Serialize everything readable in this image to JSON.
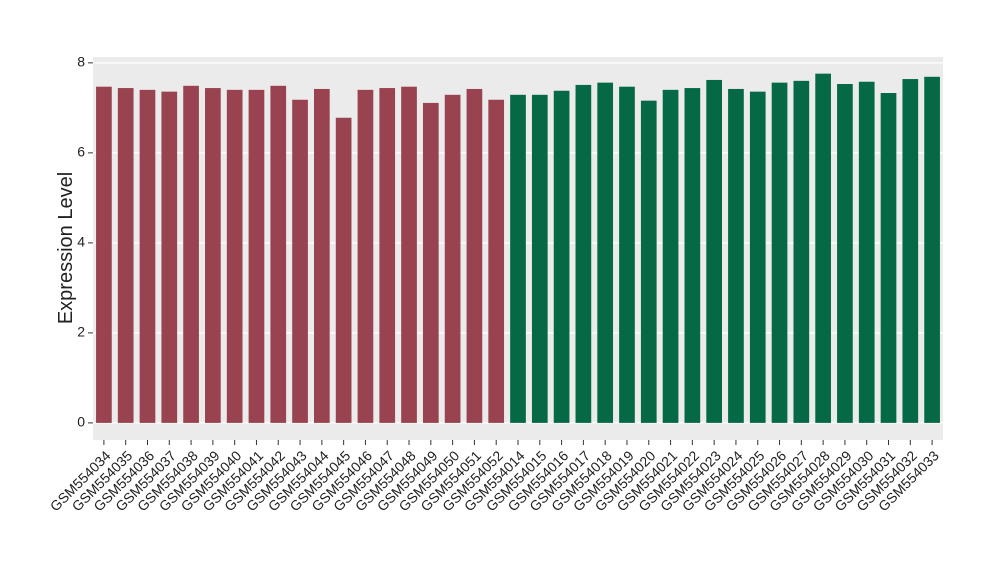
{
  "chart_data": {
    "type": "bar",
    "y_label": "Expression Level",
    "categories": [
      "GSM554034",
      "GSM554035",
      "GSM554036",
      "GSM554037",
      "GSM554038",
      "GSM554039",
      "GSM554040",
      "GSM554041",
      "GSM554042",
      "GSM554043",
      "GSM554044",
      "GSM554045",
      "GSM554046",
      "GSM554047",
      "GSM554048",
      "GSM554049",
      "GSM554050",
      "GSM554051",
      "GSM554052",
      "GSM554014",
      "GSM554015",
      "GSM554016",
      "GSM554017",
      "GSM554018",
      "GSM554019",
      "GSM554020",
      "GSM554021",
      "GSM554022",
      "GSM554023",
      "GSM554024",
      "GSM554025",
      "GSM554026",
      "GSM554027",
      "GSM554028",
      "GSM554029",
      "GSM554030",
      "GSM554031",
      "GSM554032",
      "GSM554033"
    ],
    "values": [
      7.47,
      7.44,
      7.4,
      7.36,
      7.49,
      7.44,
      7.4,
      7.4,
      7.49,
      7.18,
      7.42,
      6.78,
      7.4,
      7.44,
      7.47,
      7.11,
      7.29,
      7.42,
      7.18,
      7.29,
      7.29,
      7.38,
      7.51,
      7.56,
      7.47,
      7.16,
      7.4,
      7.44,
      7.62,
      7.42,
      7.36,
      7.56,
      7.6,
      7.76,
      7.53,
      7.58,
      7.33,
      7.64,
      7.69
    ],
    "colors": [
      "#98434f",
      "#98434f",
      "#98434f",
      "#98434f",
      "#98434f",
      "#98434f",
      "#98434f",
      "#98434f",
      "#98434f",
      "#98434f",
      "#98434f",
      "#98434f",
      "#98434f",
      "#98434f",
      "#98434f",
      "#98434f",
      "#98434f",
      "#98434f",
      "#98434f",
      "#056945",
      "#056945",
      "#056945",
      "#056945",
      "#056945",
      "#056945",
      "#056945",
      "#056945",
      "#056945",
      "#056945",
      "#056945",
      "#056945",
      "#056945",
      "#056945",
      "#056945",
      "#056945",
      "#056945",
      "#056945",
      "#056945",
      "#056945"
    ],
    "ylim": [
      -0.38,
      8.13
    ],
    "yticks": [
      0,
      2,
      4,
      6,
      8
    ],
    "grid": true,
    "background": "#ebebeb"
  }
}
